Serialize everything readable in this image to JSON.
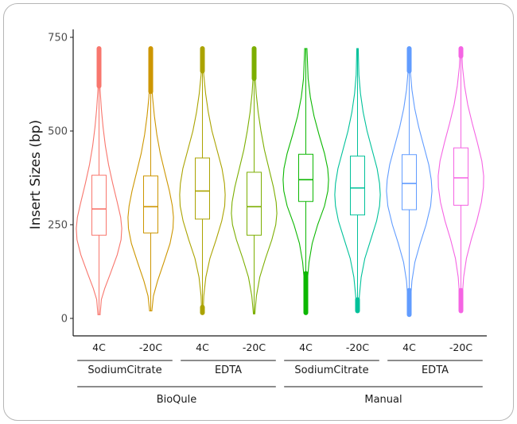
{
  "chart_data": {
    "type": "violin",
    "title": "",
    "xlabel": "",
    "ylabel": "Insert Sizes (bp)",
    "ylim": [
      0,
      750
    ],
    "yticks": [
      0,
      250,
      500,
      750
    ],
    "grid": false,
    "legend": "none",
    "categories": [
      "4C",
      "-20C",
      "4C",
      "-20C",
      "4C",
      "-20C",
      "4C",
      "-20C"
    ],
    "anticoagulant_groups": [
      {
        "label": "SodiumCitrate",
        "span": [
          0,
          1
        ]
      },
      {
        "label": "EDTA",
        "span": [
          2,
          3
        ]
      },
      {
        "label": "SodiumCitrate",
        "span": [
          4,
          5
        ]
      },
      {
        "label": "EDTA",
        "span": [
          6,
          7
        ]
      }
    ],
    "method_groups": [
      {
        "label": "BioQule",
        "span": [
          0,
          3
        ]
      },
      {
        "label": "Manual",
        "span": [
          4,
          7
        ]
      }
    ],
    "series": [
      {
        "color": "#F8766D",
        "min": 10,
        "max": 720,
        "q1": 222,
        "median": 292,
        "q3": 382,
        "whisker_low": 10,
        "whisker_high": 620,
        "outliers_high": [
          620,
          720
        ],
        "outliers_low": null,
        "density": [
          [
            10,
            0.05
          ],
          [
            50,
            0.1
          ],
          [
            80,
            0.25
          ],
          [
            120,
            0.5
          ],
          [
            170,
            0.8
          ],
          [
            210,
            0.97
          ],
          [
            240,
            1.0
          ],
          [
            270,
            0.95
          ],
          [
            310,
            0.8
          ],
          [
            360,
            0.6
          ],
          [
            410,
            0.42
          ],
          [
            460,
            0.28
          ],
          [
            510,
            0.18
          ],
          [
            560,
            0.1
          ],
          [
            610,
            0.05
          ],
          [
            660,
            0.02
          ],
          [
            720,
            0.02
          ]
        ]
      },
      {
        "color": "#CD9600",
        "min": 20,
        "max": 720,
        "q1": 228,
        "median": 298,
        "q3": 380,
        "whisker_low": 20,
        "whisker_high": 605,
        "outliers_high": [
          605,
          720
        ],
        "outliers_low": null,
        "density": [
          [
            20,
            0.05
          ],
          [
            60,
            0.12
          ],
          [
            100,
            0.3
          ],
          [
            150,
            0.58
          ],
          [
            200,
            0.85
          ],
          [
            240,
            0.98
          ],
          [
            270,
            1.0
          ],
          [
            300,
            0.95
          ],
          [
            340,
            0.82
          ],
          [
            390,
            0.62
          ],
          [
            440,
            0.42
          ],
          [
            490,
            0.27
          ],
          [
            540,
            0.16
          ],
          [
            590,
            0.08
          ],
          [
            640,
            0.03
          ],
          [
            720,
            0.02
          ]
        ]
      },
      {
        "color": "#ABA300",
        "min": 15,
        "max": 720,
        "q1": 265,
        "median": 340,
        "q3": 428,
        "whisker_low": 15,
        "whisker_high": 660,
        "outliers_high": [
          660,
          720
        ],
        "outliers_low": [
          15,
          30
        ],
        "density": [
          [
            15,
            0.03
          ],
          [
            60,
            0.06
          ],
          [
            110,
            0.15
          ],
          [
            160,
            0.33
          ],
          [
            210,
            0.6
          ],
          [
            260,
            0.85
          ],
          [
            300,
            0.98
          ],
          [
            330,
            1.0
          ],
          [
            360,
            0.97
          ],
          [
            400,
            0.86
          ],
          [
            450,
            0.64
          ],
          [
            500,
            0.42
          ],
          [
            550,
            0.26
          ],
          [
            600,
            0.14
          ],
          [
            650,
            0.06
          ],
          [
            720,
            0.02
          ]
        ]
      },
      {
        "color": "#7CAE00",
        "min": 12,
        "max": 720,
        "q1": 222,
        "median": 298,
        "q3": 390,
        "whisker_low": 12,
        "whisker_high": 640,
        "outliers_high": [
          640,
          720
        ],
        "outliers_low": null,
        "density": [
          [
            12,
            0.03
          ],
          [
            60,
            0.1
          ],
          [
            110,
            0.25
          ],
          [
            160,
            0.5
          ],
          [
            210,
            0.78
          ],
          [
            250,
            0.95
          ],
          [
            280,
            1.0
          ],
          [
            310,
            0.97
          ],
          [
            350,
            0.85
          ],
          [
            400,
            0.65
          ],
          [
            450,
            0.45
          ],
          [
            500,
            0.3
          ],
          [
            550,
            0.18
          ],
          [
            600,
            0.09
          ],
          [
            650,
            0.04
          ],
          [
            720,
            0.02
          ]
        ]
      },
      {
        "color": "#0CB702",
        "min": 15,
        "max": 720,
        "q1": 312,
        "median": 370,
        "q3": 438,
        "whisker_low": 120,
        "whisker_high": 720,
        "outliers_high": null,
        "outliers_low": [
          15,
          120
        ],
        "density": [
          [
            15,
            0.04
          ],
          [
            60,
            0.06
          ],
          [
            110,
            0.08
          ],
          [
            150,
            0.14
          ],
          [
            200,
            0.28
          ],
          [
            250,
            0.52
          ],
          [
            300,
            0.82
          ],
          [
            340,
            0.97
          ],
          [
            370,
            1.0
          ],
          [
            400,
            0.96
          ],
          [
            440,
            0.82
          ],
          [
            490,
            0.58
          ],
          [
            540,
            0.36
          ],
          [
            590,
            0.2
          ],
          [
            640,
            0.1
          ],
          [
            720,
            0.05
          ]
        ]
      },
      {
        "color": "#00C19A",
        "min": 20,
        "max": 720,
        "q1": 276,
        "median": 348,
        "q3": 433,
        "whisker_low": 50,
        "whisker_high": 720,
        "outliers_high": null,
        "outliers_low": [
          20,
          50
        ],
        "density": [
          [
            20,
            0.05
          ],
          [
            60,
            0.08
          ],
          [
            110,
            0.16
          ],
          [
            160,
            0.32
          ],
          [
            210,
            0.58
          ],
          [
            260,
            0.84
          ],
          [
            300,
            0.97
          ],
          [
            330,
            1.0
          ],
          [
            360,
            0.97
          ],
          [
            400,
            0.86
          ],
          [
            450,
            0.64
          ],
          [
            500,
            0.42
          ],
          [
            550,
            0.25
          ],
          [
            600,
            0.13
          ],
          [
            650,
            0.06
          ],
          [
            720,
            0.03
          ]
        ]
      },
      {
        "color": "#619CFF",
        "min": 10,
        "max": 720,
        "q1": 290,
        "median": 360,
        "q3": 437,
        "whisker_low": 75,
        "whisker_high": 660,
        "outliers_high": [
          660,
          720
        ],
        "outliers_low": [
          10,
          75
        ],
        "density": [
          [
            10,
            0.04
          ],
          [
            50,
            0.06
          ],
          [
            100,
            0.12
          ],
          [
            150,
            0.25
          ],
          [
            200,
            0.48
          ],
          [
            250,
            0.74
          ],
          [
            300,
            0.94
          ],
          [
            340,
            1.0
          ],
          [
            370,
            0.97
          ],
          [
            410,
            0.86
          ],
          [
            460,
            0.64
          ],
          [
            510,
            0.42
          ],
          [
            560,
            0.24
          ],
          [
            610,
            0.12
          ],
          [
            660,
            0.05
          ],
          [
            720,
            0.02
          ]
        ]
      },
      {
        "color": "#F564E3",
        "min": 20,
        "max": 720,
        "q1": 302,
        "median": 375,
        "q3": 455,
        "whisker_low": 75,
        "whisker_high": 700,
        "outliers_high": [
          700,
          720
        ],
        "outliers_low": [
          20,
          75
        ],
        "density": [
          [
            20,
            0.04
          ],
          [
            60,
            0.06
          ],
          [
            110,
            0.12
          ],
          [
            160,
            0.24
          ],
          [
            210,
            0.45
          ],
          [
            260,
            0.7
          ],
          [
            310,
            0.9
          ],
          [
            350,
            0.99
          ],
          [
            380,
            1.0
          ],
          [
            420,
            0.92
          ],
          [
            470,
            0.72
          ],
          [
            520,
            0.5
          ],
          [
            570,
            0.3
          ],
          [
            620,
            0.16
          ],
          [
            670,
            0.07
          ],
          [
            720,
            0.03
          ]
        ]
      }
    ]
  }
}
